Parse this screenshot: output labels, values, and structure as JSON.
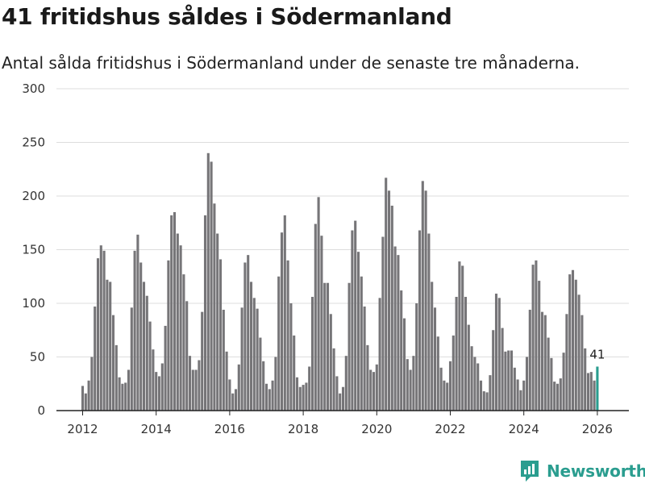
{
  "title": "41 fritidshus såldes i Södermanland",
  "subtitle": "Antal sålda fritidshus i Södermanland under de senaste tre månaderna.",
  "brand": "Newsworthy",
  "colors": {
    "bar": "#767578",
    "highlight": "#2a9d8f",
    "grid": "#dddddd"
  },
  "chart_data": {
    "type": "bar",
    "title": "41 fritidshus såldes i Södermanland",
    "subtitle": "Antal sålda fritidshus i Södermanland under de senaste tre månaderna.",
    "x_ticks": [
      "2012",
      "2014",
      "2016",
      "2018",
      "2020",
      "2022",
      "2024",
      "2026"
    ],
    "y_ticks": [
      0,
      50,
      100,
      150,
      200,
      250,
      300
    ],
    "ylim": [
      0,
      300
    ],
    "grid": true,
    "start": "2012-01",
    "values": [
      23,
      16,
      28,
      50,
      97,
      142,
      154,
      149,
      122,
      120,
      89,
      61,
      31,
      25,
      26,
      38,
      96,
      149,
      164,
      138,
      120,
      107,
      83,
      57,
      36,
      32,
      44,
      79,
      140,
      182,
      185,
      165,
      154,
      127,
      102,
      51,
      38,
      38,
      47,
      92,
      182,
      240,
      232,
      193,
      165,
      141,
      94,
      55,
      29,
      16,
      20,
      43,
      96,
      138,
      145,
      120,
      105,
      95,
      68,
      46,
      25,
      20,
      28,
      50,
      125,
      166,
      182,
      140,
      100,
      70,
      31,
      22,
      24,
      26,
      41,
      106,
      174,
      199,
      163,
      119,
      119,
      90,
      58,
      32,
      16,
      22,
      51,
      119,
      168,
      177,
      148,
      125,
      97,
      61,
      38,
      36,
      43,
      105,
      162,
      217,
      205,
      191,
      153,
      145,
      112,
      86,
      48,
      38,
      51,
      100,
      168,
      214,
      205,
      165,
      120,
      96,
      69,
      40,
      28,
      26,
      46,
      70,
      106,
      139,
      135,
      106,
      80,
      60,
      50,
      44,
      28,
      18,
      17,
      33,
      75,
      109,
      105,
      77,
      55,
      56,
      56,
      40,
      29,
      19,
      28,
      50,
      94,
      136,
      140,
      121,
      92,
      89,
      68,
      49,
      27,
      25,
      30,
      54,
      90,
      127,
      131,
      122,
      108,
      89,
      58,
      35,
      36,
      28,
      41
    ],
    "highlight_last": true,
    "data_labels": [
      {
        "index": 168,
        "text": "41"
      }
    ]
  }
}
